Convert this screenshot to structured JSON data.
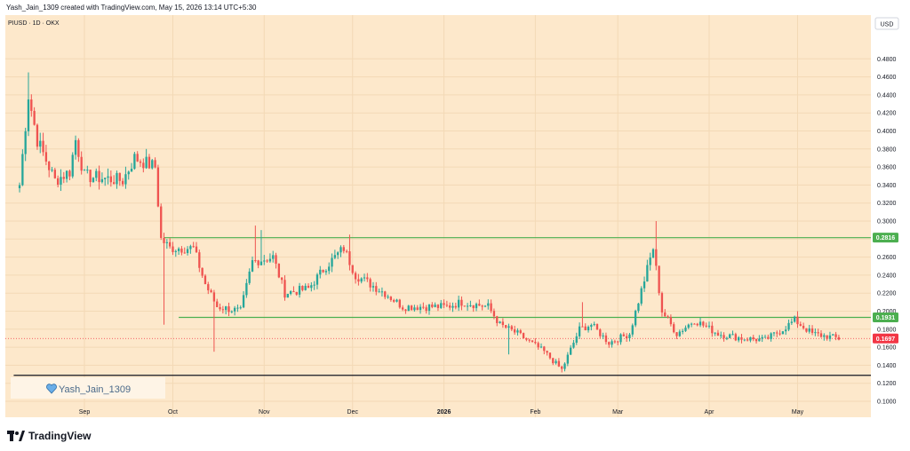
{
  "header": {
    "attribution": "Yash_Jain_1309 created with TradingView.com, May 15, 2026 13:14 UTC+5:30"
  },
  "symbol_line": "PIUSD · 1D · OKX",
  "currency_label": "USD",
  "watermark_text": "Yash_Jain_1309",
  "brand": "TradingView",
  "colors": {
    "background": "#fde8cb",
    "up": "#26a69a",
    "down": "#ef5350",
    "level_line": "#4caf50",
    "current_price": "#f23645",
    "support_line": "#131722"
  },
  "chart_data": {
    "type": "candlestick",
    "ylim": [
      0.1,
      0.5
    ],
    "y_ticks": [
      "0.4800",
      "0.4600",
      "0.4400",
      "0.4200",
      "0.4000",
      "0.3800",
      "0.3600",
      "0.3400",
      "0.3200",
      "0.3000",
      "0.2800",
      "0.2600",
      "0.2400",
      "0.2200",
      "0.2000",
      "0.1800",
      "0.1600",
      "0.1400",
      "0.1200",
      "0.1000"
    ],
    "x_ticks": [
      {
        "label": "Sep",
        "date": "2025-09-01",
        "bold": false
      },
      {
        "label": "Oct",
        "date": "2025-10-01",
        "bold": false
      },
      {
        "label": "Nov",
        "date": "2025-11-01",
        "bold": false
      },
      {
        "label": "Dec",
        "date": "2025-12-01",
        "bold": false
      },
      {
        "label": "2026",
        "date": "2026-01-01",
        "bold": true
      },
      {
        "label": "Feb",
        "date": "2026-02-01",
        "bold": false
      },
      {
        "label": "Mar",
        "date": "2026-03-01",
        "bold": false
      },
      {
        "label": "Apr",
        "date": "2026-04-01",
        "bold": false
      },
      {
        "label": "May",
        "date": "2026-05-01",
        "bold": false
      }
    ],
    "horizontal_levels": [
      {
        "value": 0.2816,
        "label": "0.2816",
        "color": "#4caf50",
        "from_date": "2025-09-28"
      },
      {
        "value": 0.1931,
        "label": "0.1931",
        "color": "#4caf50",
        "from_date": "2025-10-03"
      },
      {
        "value": 0.1288,
        "label": "",
        "color": "#131722",
        "from_date": "2025-08-08"
      }
    ],
    "current_price": {
      "value": 0.1697,
      "label": "0.1697"
    },
    "anchors": [
      {
        "date": "2025-08-10",
        "close": 0.34
      },
      {
        "date": "2025-08-13",
        "close": 0.44
      },
      {
        "date": "2025-08-16",
        "close": 0.39
      },
      {
        "date": "2025-08-22",
        "close": 0.345
      },
      {
        "date": "2025-08-27",
        "close": 0.355
      },
      {
        "date": "2025-08-29",
        "close": 0.39
      },
      {
        "date": "2025-09-01",
        "close": 0.35
      },
      {
        "date": "2025-09-14",
        "close": 0.345
      },
      {
        "date": "2025-09-18",
        "close": 0.37
      },
      {
        "date": "2025-09-25",
        "close": 0.36
      },
      {
        "date": "2025-09-27",
        "close": 0.28
      },
      {
        "date": "2025-09-30",
        "close": 0.27
      },
      {
        "date": "2025-10-08",
        "close": 0.27
      },
      {
        "date": "2025-10-12",
        "close": 0.23
      },
      {
        "date": "2025-10-16",
        "close": 0.205
      },
      {
        "date": "2025-10-24",
        "close": 0.2
      },
      {
        "date": "2025-10-28",
        "close": 0.255
      },
      {
        "date": "2025-11-04",
        "close": 0.26
      },
      {
        "date": "2025-11-08",
        "close": 0.22
      },
      {
        "date": "2025-11-16",
        "close": 0.225
      },
      {
        "date": "2025-11-22",
        "close": 0.25
      },
      {
        "date": "2025-11-28",
        "close": 0.27
      },
      {
        "date": "2025-12-02",
        "close": 0.24
      },
      {
        "date": "2025-12-12",
        "close": 0.22
      },
      {
        "date": "2025-12-18",
        "close": 0.205
      },
      {
        "date": "2025-12-24",
        "close": 0.205
      },
      {
        "date": "2026-01-02",
        "close": 0.205
      },
      {
        "date": "2026-01-07",
        "close": 0.21
      },
      {
        "date": "2026-01-16",
        "close": 0.205
      },
      {
        "date": "2026-01-20",
        "close": 0.185
      },
      {
        "date": "2026-01-26",
        "close": 0.175
      },
      {
        "date": "2026-02-04",
        "close": 0.155
      },
      {
        "date": "2026-02-10",
        "close": 0.135
      },
      {
        "date": "2026-02-16",
        "close": 0.18
      },
      {
        "date": "2026-02-20",
        "close": 0.185
      },
      {
        "date": "2026-02-26",
        "close": 0.165
      },
      {
        "date": "2026-03-05",
        "close": 0.175
      },
      {
        "date": "2026-03-10",
        "close": 0.235
      },
      {
        "date": "2026-03-13",
        "close": 0.27
      },
      {
        "date": "2026-03-16",
        "close": 0.2
      },
      {
        "date": "2026-03-21",
        "close": 0.175
      },
      {
        "date": "2026-03-27",
        "close": 0.19
      },
      {
        "date": "2026-04-04",
        "close": 0.175
      },
      {
        "date": "2026-04-12",
        "close": 0.17
      },
      {
        "date": "2026-04-20",
        "close": 0.168
      },
      {
        "date": "2026-04-26",
        "close": 0.18
      },
      {
        "date": "2026-04-30",
        "close": 0.19
      },
      {
        "date": "2026-05-06",
        "close": 0.175
      },
      {
        "date": "2026-05-15",
        "close": 0.1697
      }
    ],
    "spikes": [
      {
        "date": "2025-08-13",
        "high": 0.465
      },
      {
        "date": "2025-09-28",
        "low": 0.185
      },
      {
        "date": "2025-10-15",
        "low": 0.155
      },
      {
        "date": "2025-10-29",
        "high": 0.295
      },
      {
        "date": "2025-10-31",
        "high": 0.29
      },
      {
        "date": "2025-11-30",
        "high": 0.285
      },
      {
        "date": "2026-01-23",
        "low": 0.152
      },
      {
        "date": "2026-02-10",
        "low": 0.132
      },
      {
        "date": "2026-02-17",
        "high": 0.21
      },
      {
        "date": "2026-03-14",
        "high": 0.3
      },
      {
        "date": "2026-05-01",
        "high": 0.2
      }
    ]
  }
}
